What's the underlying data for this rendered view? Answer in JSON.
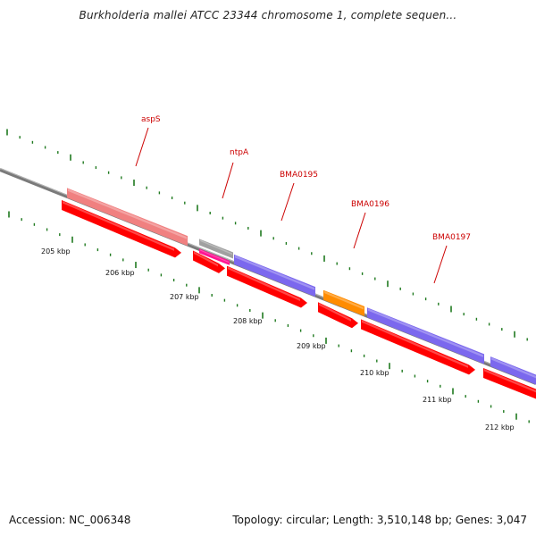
{
  "title": "Burkholderia mallei ATCC 23344 chromosome 1, complete sequen...",
  "footer": {
    "accession": "Accession: NC_006348",
    "summary": "Topology: circular; Length: 3,510,148 bp; Genes: 3,047"
  },
  "colors": {
    "backbone": "#7a7a7a",
    "tick": "#1f7a1f",
    "label": "#cc0000",
    "cds": "#ff0000",
    "gene_aspS": "#f08080",
    "gene_ntpA": "#a0a0a0",
    "gene_BMA0195": "#7b68ee",
    "gene_BMA0196": "#ff8c00",
    "gene_BMA0197": "#7b68ee",
    "gene_next": "#7b68ee",
    "small_magenta": "#ff1493"
  },
  "gene_labels": [
    "aspS",
    "ntpA",
    "BMA0195",
    "BMA0196",
    "BMA0197"
  ],
  "kbp_labels": [
    "205 kbp",
    "206 kbp",
    "207 kbp",
    "208 kbp",
    "209 kbp",
    "210 kbp",
    "211 kbp",
    "212 kbp"
  ]
}
